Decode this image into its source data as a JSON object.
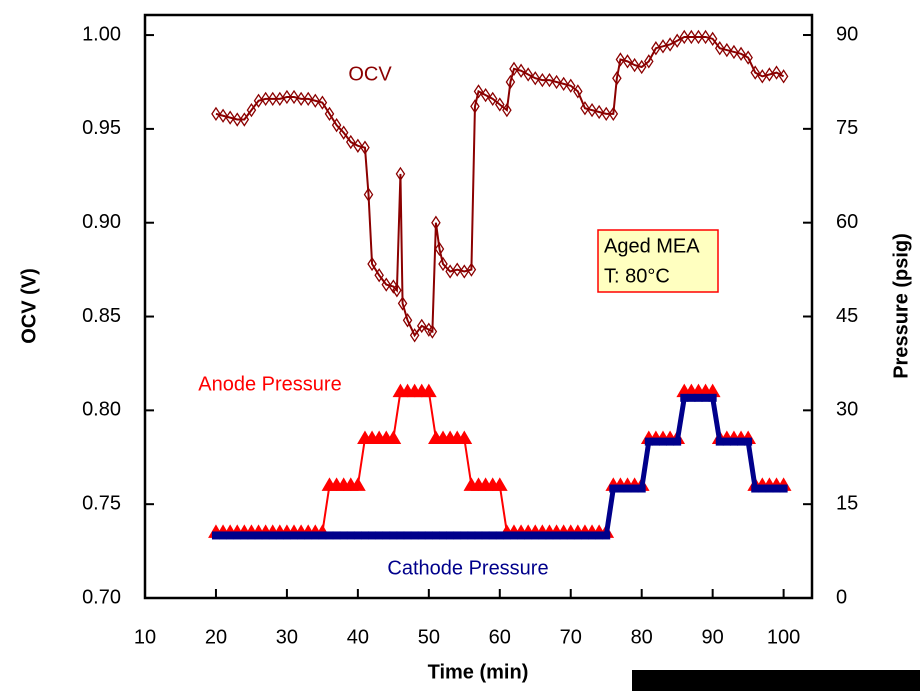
{
  "chart_data": {
    "type": "line",
    "x_label": "Time (min)",
    "y_label": "OCV (V)",
    "y2_label": "Pressure (psig)",
    "xlim": [
      10,
      104
    ],
    "xticks": [
      10,
      20,
      30,
      40,
      50,
      60,
      70,
      80,
      90,
      100
    ],
    "ylim": [
      0.7,
      1.0107
    ],
    "yticks": [
      {
        "value": 0.7,
        "label": "0.70"
      },
      {
        "value": 0.75,
        "label": "0.75"
      },
      {
        "value": 0.8,
        "label": "0.80"
      },
      {
        "value": 0.85,
        "label": "0.85"
      },
      {
        "value": 0.9,
        "label": "0.90"
      },
      {
        "value": 0.95,
        "label": "0.95"
      },
      {
        "value": 1.0,
        "label": "1.00"
      }
    ],
    "y2lim": [
      0,
      93.2
    ],
    "y2ticks": [
      0,
      15,
      30,
      45,
      60,
      75,
      90
    ],
    "annotations": [
      {
        "text": "OCV",
        "color": "#8b0000"
      },
      {
        "text": "Anode Pressure",
        "color": "#ff0000"
      },
      {
        "text": "Cathode Pressure",
        "color": "#00008b"
      }
    ],
    "box_lines": [
      "Aged MEA",
      "T: 80°C"
    ],
    "series": [
      {
        "name": "OCV",
        "color": "#8b0000",
        "marker": "diamond",
        "axis": "y",
        "x": [
          20,
          21,
          22,
          23,
          24,
          25,
          26,
          27,
          28,
          29,
          30,
          31,
          32,
          33,
          34,
          35,
          36,
          37,
          38,
          39,
          40,
          41,
          41.5,
          42,
          43,
          44,
          45,
          45.5,
          46,
          46.3,
          47,
          48,
          49,
          50,
          50.5,
          51,
          51.5,
          52,
          53,
          54,
          55,
          56,
          56.5,
          57,
          58,
          59,
          60,
          61,
          61.5,
          62,
          63,
          64,
          65,
          66,
          67,
          68,
          69,
          70,
          71,
          72,
          73,
          74,
          75,
          76,
          76.5,
          77,
          78,
          79,
          80,
          81,
          82,
          83,
          84,
          85,
          86,
          87,
          88,
          89,
          90,
          91,
          92,
          93,
          94,
          95,
          96,
          97,
          98,
          99,
          100
        ],
        "values": [
          0.958,
          0.957,
          0.956,
          0.955,
          0.955,
          0.96,
          0.965,
          0.966,
          0.966,
          0.966,
          0.967,
          0.967,
          0.966,
          0.966,
          0.965,
          0.964,
          0.958,
          0.952,
          0.948,
          0.943,
          0.941,
          0.94,
          0.915,
          0.878,
          0.872,
          0.867,
          0.866,
          0.864,
          0.926,
          0.857,
          0.848,
          0.84,
          0.845,
          0.843,
          0.842,
          0.9,
          0.886,
          0.878,
          0.874,
          0.875,
          0.874,
          0.875,
          0.962,
          0.97,
          0.968,
          0.966,
          0.963,
          0.96,
          0.975,
          0.982,
          0.981,
          0.979,
          0.977,
          0.976,
          0.976,
          0.975,
          0.974,
          0.973,
          0.97,
          0.961,
          0.96,
          0.959,
          0.958,
          0.958,
          0.977,
          0.987,
          0.986,
          0.984,
          0.983,
          0.986,
          0.993,
          0.994,
          0.995,
          0.997,
          0.999,
          0.999,
          0.999,
          0.999,
          0.998,
          0.993,
          0.992,
          0.991,
          0.99,
          0.988,
          0.98,
          0.978,
          0.979,
          0.98,
          0.978
        ]
      },
      {
        "name": "Anode Pressure",
        "color": "#ff0000",
        "marker": "triangle",
        "axis": "y2",
        "x": [
          20,
          21,
          22,
          23,
          24,
          25,
          26,
          27,
          28,
          29,
          30,
          31,
          32,
          33,
          34,
          35,
          36,
          37,
          38,
          39,
          40,
          41,
          42,
          43,
          44,
          45,
          46,
          47,
          48,
          49,
          50,
          51,
          52,
          53,
          54,
          55,
          56,
          57,
          58,
          59,
          60,
          61,
          62,
          63,
          64,
          65,
          66,
          67,
          68,
          69,
          70,
          71,
          72,
          73,
          74,
          75,
          76,
          77,
          78,
          79,
          80,
          81,
          82,
          83,
          84,
          85,
          86,
          87,
          88,
          89,
          90,
          91,
          92,
          93,
          94,
          95,
          96,
          97,
          98,
          99,
          100
        ],
        "values": [
          10.5,
          10.5,
          10.5,
          10.5,
          10.5,
          10.5,
          10.5,
          10.5,
          10.5,
          10.5,
          10.5,
          10.5,
          10.5,
          10.5,
          10.5,
          10.5,
          18,
          18,
          18,
          18,
          18,
          25.5,
          25.5,
          25.5,
          25.5,
          25.5,
          33,
          33,
          33,
          33,
          33,
          25.5,
          25.5,
          25.5,
          25.5,
          25.5,
          18,
          18,
          18,
          18,
          18,
          10.5,
          10.5,
          10.5,
          10.5,
          10.5,
          10.5,
          10.5,
          10.5,
          10.5,
          10.5,
          10.5,
          10.5,
          10.5,
          10.5,
          10.5,
          18,
          18,
          18,
          18,
          18,
          25.5,
          25.5,
          25.5,
          25.5,
          25.5,
          33,
          33,
          33,
          33,
          33,
          25.5,
          25.5,
          25.5,
          25.5,
          25.5,
          18,
          18,
          18,
          18,
          18
        ]
      },
      {
        "name": "Cathode Pressure",
        "color": "#00008b",
        "marker": "square",
        "axis": "y2",
        "x": [
          20,
          21,
          22,
          23,
          24,
          25,
          26,
          27,
          28,
          29,
          30,
          31,
          32,
          33,
          34,
          35,
          36,
          37,
          38,
          39,
          40,
          41,
          42,
          43,
          44,
          45,
          46,
          47,
          48,
          49,
          50,
          51,
          52,
          53,
          54,
          55,
          56,
          57,
          58,
          59,
          60,
          61,
          62,
          63,
          64,
          65,
          66,
          67,
          68,
          69,
          70,
          71,
          72,
          73,
          74,
          75,
          76,
          77,
          78,
          79,
          80,
          81,
          82,
          83,
          84,
          85,
          86,
          87,
          88,
          89,
          90,
          91,
          92,
          93,
          94,
          95,
          96,
          97,
          98,
          99,
          100
        ],
        "values": [
          10,
          10,
          10,
          10,
          10,
          10,
          10,
          10,
          10,
          10,
          10,
          10,
          10,
          10,
          10,
          10,
          10,
          10,
          10,
          10,
          10,
          10,
          10,
          10,
          10,
          10,
          10,
          10,
          10,
          10,
          10,
          10,
          10,
          10,
          10,
          10,
          10,
          10,
          10,
          10,
          10,
          10,
          10,
          10,
          10,
          10,
          10,
          10,
          10,
          10,
          10,
          10,
          10,
          10,
          10,
          10,
          17.5,
          17.5,
          17.5,
          17.5,
          17.5,
          25,
          25,
          25,
          25,
          25,
          32,
          32,
          32,
          32,
          32,
          25,
          25,
          25,
          25,
          25,
          17.5,
          17.5,
          17.5,
          17.5,
          17.5
        ]
      }
    ]
  }
}
